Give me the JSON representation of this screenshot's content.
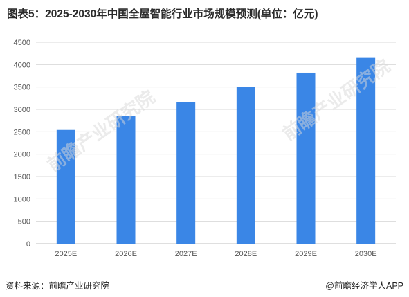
{
  "title": "图表5：2025-2030年中国全屋智能行业市场规模预测(单位：亿元)",
  "source": "资料来源：前瞻产业研究院",
  "credit": "@前瞻经济学人APP",
  "colors": {
    "bar": "#3a86e6",
    "grid": "#d9d9d9",
    "axis_text": "#555555"
  },
  "chart_data": {
    "type": "bar",
    "categories": [
      "2025E",
      "2026E",
      "2027E",
      "2028E",
      "2029E",
      "2030E"
    ],
    "values": [
      2540,
      2860,
      3170,
      3500,
      3820,
      4150
    ],
    "ylim": [
      0,
      4500
    ],
    "yticks": [
      0,
      500,
      1000,
      1500,
      2000,
      2500,
      3000,
      3500,
      4000,
      4500
    ],
    "grid": true,
    "legend": "none",
    "xlabel": "",
    "ylabel": ""
  }
}
